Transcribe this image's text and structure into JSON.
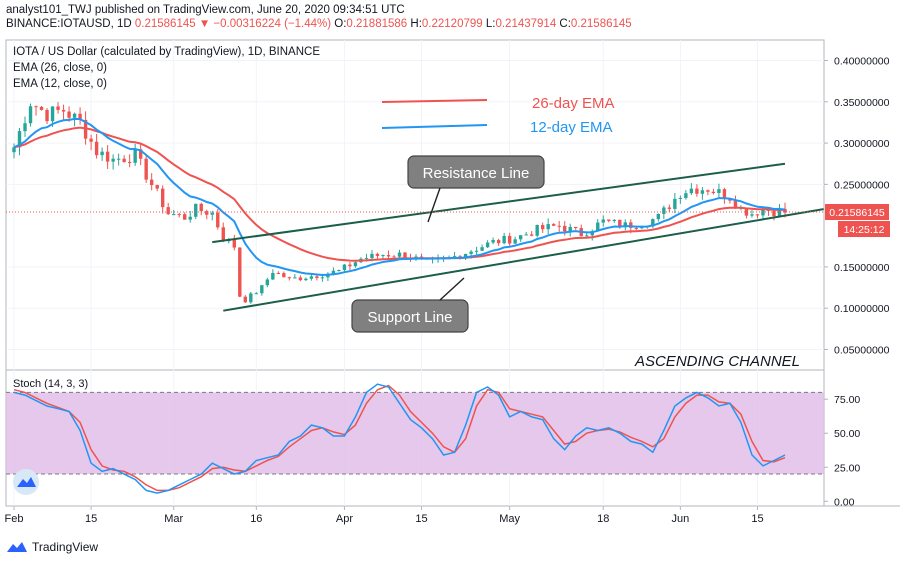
{
  "header": {
    "line1": "analyst101_TWJ published on TradingView.com, June 20, 2020 09:34:51 UTC",
    "symbol": "BINANCE:IOTAUSD, 1D",
    "price": "0.21586145",
    "change": "▼ −0.00316224 (−1.44%)",
    "ohlc_o_label": "O:",
    "ohlc_o": "0.21881586",
    "ohlc_h_label": "H:",
    "ohlc_h": "0.22120799",
    "ohlc_l_label": "L:",
    "ohlc_l": "0.21437914",
    "ohlc_c_label": "C:",
    "ohlc_c": "0.21586145"
  },
  "legend": {
    "title": "IOTA / US Dollar (calculated by TradingView), 1D, BINANCE",
    "ema26": "EMA (26, close, 0)",
    "ema12": "EMA (12, close, 0)",
    "stoch": "Stoch (14, 3, 3)"
  },
  "annotations": {
    "ema26_label": "26-day EMA",
    "ema12_label": "12-day EMA",
    "resistance": "Resistance Line",
    "support": "Support Line",
    "channel": "ASCENDING CHANNEL"
  },
  "price_tag": "0.21586145",
  "countdown_tag": "14:25:12",
  "footer": {
    "brand": "TradingView"
  },
  "colors": {
    "up": "#26a69a",
    "down": "#ef5350",
    "ema26": "#ef5350",
    "ema12": "#2196f3",
    "stoch_k": "#2196f3",
    "stoch_d": "#ef5350",
    "stoch_band": "#e1bee7",
    "channel_line": "#1b5e4a"
  },
  "chart_data": {
    "type": "candlestick",
    "price_axis": {
      "min": 0.03,
      "max": 0.42,
      "ticks": [
        "0.40000000",
        "0.35000000",
        "0.30000000",
        "0.25000000",
        "0.15000000",
        "0.10000000",
        "0.05000000"
      ],
      "tick_values": [
        0.4,
        0.35,
        0.3,
        0.25,
        0.15,
        0.1,
        0.05
      ]
    },
    "stoch_axis": {
      "min": -2,
      "max": 95,
      "ticks": [
        "75.00",
        "50.00",
        "25.00",
        "0.00"
      ],
      "tick_values": [
        75,
        50,
        25,
        0
      ],
      "band": [
        20,
        80
      ]
    },
    "x_ticks": [
      {
        "label": "Feb",
        "day": 0
      },
      {
        "label": "15",
        "day": 14
      },
      {
        "label": "Mar",
        "day": 29
      },
      {
        "label": "16",
        "day": 44
      },
      {
        "label": "Apr",
        "day": 60
      },
      {
        "label": "15",
        "day": 74
      },
      {
        "label": "May",
        "day": 90
      },
      {
        "label": "18",
        "day": 107
      },
      {
        "label": "Jun",
        "day": 121
      },
      {
        "label": "15",
        "day": 135
      }
    ],
    "n_days": 141,
    "anchors_close": [
      [
        0,
        0.295
      ],
      [
        3,
        0.35
      ],
      [
        6,
        0.335
      ],
      [
        9,
        0.34
      ],
      [
        12,
        0.325
      ],
      [
        15,
        0.29
      ],
      [
        18,
        0.28
      ],
      [
        22,
        0.285
      ],
      [
        25,
        0.25
      ],
      [
        28,
        0.215
      ],
      [
        31,
        0.21
      ],
      [
        33,
        0.22
      ],
      [
        36,
        0.215
      ],
      [
        38,
        0.185
      ],
      [
        40,
        0.175
      ],
      [
        41,
        0.115
      ],
      [
        42,
        0.11
      ],
      [
        45,
        0.125
      ],
      [
        47,
        0.145
      ],
      [
        50,
        0.135
      ],
      [
        55,
        0.14
      ],
      [
        59,
        0.145
      ],
      [
        63,
        0.16
      ],
      [
        67,
        0.165
      ],
      [
        71,
        0.165
      ],
      [
        75,
        0.155
      ],
      [
        79,
        0.16
      ],
      [
        83,
        0.17
      ],
      [
        87,
        0.18
      ],
      [
        91,
        0.185
      ],
      [
        95,
        0.195
      ],
      [
        99,
        0.2
      ],
      [
        103,
        0.19
      ],
      [
        107,
        0.205
      ],
      [
        111,
        0.2
      ],
      [
        115,
        0.205
      ],
      [
        117,
        0.21
      ],
      [
        119,
        0.225
      ],
      [
        121,
        0.24
      ],
      [
        123,
        0.245
      ],
      [
        126,
        0.245
      ],
      [
        128,
        0.24
      ],
      [
        130,
        0.235
      ],
      [
        132,
        0.22
      ],
      [
        134,
        0.215
      ],
      [
        136,
        0.22
      ],
      [
        138,
        0.218
      ],
      [
        140,
        0.21586145
      ]
    ],
    "stoch_k": [
      [
        0,
        80
      ],
      [
        2,
        78
      ],
      [
        4,
        74
      ],
      [
        6,
        70
      ],
      [
        8,
        68
      ],
      [
        10,
        66
      ],
      [
        12,
        52
      ],
      [
        14,
        28
      ],
      [
        16,
        22
      ],
      [
        18,
        24
      ],
      [
        20,
        20
      ],
      [
        22,
        16
      ],
      [
        24,
        8
      ],
      [
        26,
        6
      ],
      [
        28,
        8
      ],
      [
        30,
        12
      ],
      [
        32,
        16
      ],
      [
        34,
        20
      ],
      [
        36,
        28
      ],
      [
        38,
        24
      ],
      [
        40,
        20
      ],
      [
        42,
        22
      ],
      [
        44,
        30
      ],
      [
        46,
        32
      ],
      [
        48,
        34
      ],
      [
        50,
        44
      ],
      [
        52,
        48
      ],
      [
        54,
        56
      ],
      [
        56,
        54
      ],
      [
        58,
        48
      ],
      [
        60,
        48
      ],
      [
        62,
        62
      ],
      [
        64,
        80
      ],
      [
        66,
        86
      ],
      [
        68,
        84
      ],
      [
        70,
        72
      ],
      [
        72,
        60
      ],
      [
        74,
        54
      ],
      [
        76,
        46
      ],
      [
        78,
        34
      ],
      [
        80,
        36
      ],
      [
        82,
        56
      ],
      [
        84,
        80
      ],
      [
        86,
        84
      ],
      [
        88,
        78
      ],
      [
        90,
        62
      ],
      [
        92,
        66
      ],
      [
        94,
        62
      ],
      [
        96,
        60
      ],
      [
        98,
        46
      ],
      [
        100,
        38
      ],
      [
        102,
        48
      ],
      [
        104,
        54
      ],
      [
        106,
        52
      ],
      [
        108,
        54
      ],
      [
        110,
        50
      ],
      [
        112,
        44
      ],
      [
        114,
        42
      ],
      [
        116,
        36
      ],
      [
        118,
        52
      ],
      [
        120,
        70
      ],
      [
        122,
        76
      ],
      [
        124,
        80
      ],
      [
        126,
        76
      ],
      [
        128,
        70
      ],
      [
        130,
        72
      ],
      [
        132,
        58
      ],
      [
        134,
        34
      ],
      [
        136,
        26
      ],
      [
        138,
        30
      ],
      [
        140,
        34
      ]
    ],
    "stoch_d": [
      [
        0,
        82
      ],
      [
        2,
        80
      ],
      [
        4,
        76
      ],
      [
        6,
        72
      ],
      [
        8,
        69
      ],
      [
        10,
        66
      ],
      [
        12,
        58
      ],
      [
        14,
        38
      ],
      [
        16,
        26
      ],
      [
        18,
        23
      ],
      [
        20,
        22
      ],
      [
        22,
        18
      ],
      [
        24,
        12
      ],
      [
        26,
        8
      ],
      [
        28,
        8
      ],
      [
        30,
        10
      ],
      [
        32,
        14
      ],
      [
        34,
        18
      ],
      [
        36,
        24
      ],
      [
        38,
        25
      ],
      [
        40,
        23
      ],
      [
        42,
        22
      ],
      [
        44,
        26
      ],
      [
        46,
        30
      ],
      [
        48,
        33
      ],
      [
        50,
        40
      ],
      [
        52,
        46
      ],
      [
        54,
        52
      ],
      [
        56,
        54
      ],
      [
        58,
        51
      ],
      [
        60,
        49
      ],
      [
        62,
        56
      ],
      [
        64,
        72
      ],
      [
        66,
        82
      ],
      [
        68,
        85
      ],
      [
        70,
        78
      ],
      [
        72,
        66
      ],
      [
        74,
        58
      ],
      [
        76,
        50
      ],
      [
        78,
        40
      ],
      [
        80,
        36
      ],
      [
        82,
        46
      ],
      [
        84,
        70
      ],
      [
        86,
        82
      ],
      [
        88,
        80
      ],
      [
        90,
        68
      ],
      [
        92,
        66
      ],
      [
        94,
        64
      ],
      [
        96,
        62
      ],
      [
        98,
        52
      ],
      [
        100,
        42
      ],
      [
        102,
        44
      ],
      [
        104,
        50
      ],
      [
        106,
        52
      ],
      [
        108,
        53
      ],
      [
        110,
        51
      ],
      [
        112,
        47
      ],
      [
        114,
        44
      ],
      [
        116,
        40
      ],
      [
        118,
        46
      ],
      [
        120,
        62
      ],
      [
        122,
        72
      ],
      [
        124,
        78
      ],
      [
        126,
        78
      ],
      [
        128,
        73
      ],
      [
        130,
        72
      ],
      [
        132,
        64
      ],
      [
        134,
        44
      ],
      [
        136,
        30
      ],
      [
        138,
        29
      ],
      [
        140,
        32
      ]
    ],
    "resistance_line": [
      [
        36,
        0.18
      ],
      [
        140,
        0.275
      ]
    ],
    "support_line": [
      [
        38,
        0.097
      ],
      [
        147,
        0.22
      ]
    ]
  }
}
